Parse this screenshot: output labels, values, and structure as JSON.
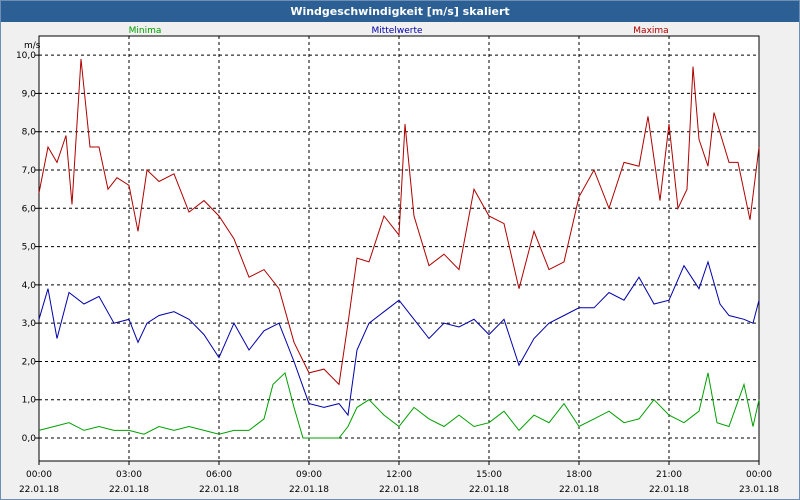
{
  "window": {
    "title": "Windgeschwindigkeit [m/s] skaliert"
  },
  "chart_data": {
    "type": "line",
    "title": "Windgeschwindigkeit [m/s] skaliert",
    "ylabel": "m/s",
    "xlabel": "",
    "ylim": [
      -0.6,
      10.5
    ],
    "xlim_hours": [
      0,
      24
    ],
    "grid": true,
    "y_ticks": [
      {
        "v": 0,
        "label": "0,0"
      },
      {
        "v": 1,
        "label": "1,0"
      },
      {
        "v": 2,
        "label": "2,0"
      },
      {
        "v": 3,
        "label": "3,0"
      },
      {
        "v": 4,
        "label": "4,0"
      },
      {
        "v": 5,
        "label": "5,0"
      },
      {
        "v": 6,
        "label": "6,0"
      },
      {
        "v": 7,
        "label": "7,0"
      },
      {
        "v": 8,
        "label": "8,0"
      },
      {
        "v": 9,
        "label": "9,0"
      },
      {
        "v": 10,
        "label": "10,0"
      }
    ],
    "x_ticks": [
      {
        "h": 0,
        "time": "00:00",
        "date": "22.01.18"
      },
      {
        "h": 3,
        "time": "03:00",
        "date": "22.01.18"
      },
      {
        "h": 6,
        "time": "06:00",
        "date": "22.01.18"
      },
      {
        "h": 9,
        "time": "09:00",
        "date": "22.01.18"
      },
      {
        "h": 12,
        "time": "12:00",
        "date": "22.01.18"
      },
      {
        "h": 15,
        "time": "15:00",
        "date": "22.01.18"
      },
      {
        "h": 18,
        "time": "18:00",
        "date": "22.01.18"
      },
      {
        "h": 21,
        "time": "21:00",
        "date": "22.01.18"
      },
      {
        "h": 24,
        "time": "00:00",
        "date": "23.01.18"
      }
    ],
    "series": [
      {
        "name": "Minima",
        "color": "#00a000",
        "points": [
          [
            0,
            0.2
          ],
          [
            0.5,
            0.3
          ],
          [
            1,
            0.4
          ],
          [
            1.5,
            0.2
          ],
          [
            2,
            0.3
          ],
          [
            2.5,
            0.2
          ],
          [
            3,
            0.2
          ],
          [
            3.5,
            0.1
          ],
          [
            4,
            0.3
          ],
          [
            4.5,
            0.2
          ],
          [
            5,
            0.3
          ],
          [
            5.5,
            0.2
          ],
          [
            6,
            0.1
          ],
          [
            6.5,
            0.2
          ],
          [
            7,
            0.2
          ],
          [
            7.5,
            0.5
          ],
          [
            7.8,
            1.4
          ],
          [
            8.2,
            1.7
          ],
          [
            8.5,
            0.8
          ],
          [
            8.8,
            0.0
          ],
          [
            9.5,
            0.0
          ],
          [
            10,
            0.0
          ],
          [
            10.3,
            0.3
          ],
          [
            10.6,
            0.8
          ],
          [
            11,
            1.0
          ],
          [
            11.5,
            0.6
          ],
          [
            12,
            0.3
          ],
          [
            12.5,
            0.8
          ],
          [
            13,
            0.5
          ],
          [
            13.5,
            0.3
          ],
          [
            14,
            0.6
          ],
          [
            14.5,
            0.3
          ],
          [
            15,
            0.4
          ],
          [
            15.5,
            0.7
          ],
          [
            16,
            0.2
          ],
          [
            16.5,
            0.6
          ],
          [
            17,
            0.4
          ],
          [
            17.5,
            0.9
          ],
          [
            18,
            0.3
          ],
          [
            18.5,
            0.5
          ],
          [
            19,
            0.7
          ],
          [
            19.5,
            0.4
          ],
          [
            20,
            0.5
          ],
          [
            20.5,
            1.0
          ],
          [
            21,
            0.6
          ],
          [
            21.5,
            0.4
          ],
          [
            22,
            0.7
          ],
          [
            22.3,
            1.7
          ],
          [
            22.6,
            0.4
          ],
          [
            23,
            0.3
          ],
          [
            23.5,
            1.4
          ],
          [
            23.8,
            0.3
          ],
          [
            24,
            1.0
          ]
        ]
      },
      {
        "name": "Mittelwerte",
        "color": "#0000aa",
        "points": [
          [
            0,
            3.1
          ],
          [
            0.3,
            3.9
          ],
          [
            0.6,
            2.6
          ],
          [
            1,
            3.8
          ],
          [
            1.5,
            3.5
          ],
          [
            2,
            3.7
          ],
          [
            2.5,
            3.0
          ],
          [
            3,
            3.1
          ],
          [
            3.3,
            2.5
          ],
          [
            3.6,
            3.0
          ],
          [
            4,
            3.2
          ],
          [
            4.5,
            3.3
          ],
          [
            5,
            3.1
          ],
          [
            5.5,
            2.7
          ],
          [
            6,
            2.1
          ],
          [
            6.5,
            3.0
          ],
          [
            7,
            2.3
          ],
          [
            7.5,
            2.8
          ],
          [
            8,
            3.0
          ],
          [
            8.5,
            2.0
          ],
          [
            9,
            0.9
          ],
          [
            9.5,
            0.8
          ],
          [
            10,
            0.9
          ],
          [
            10.3,
            0.6
          ],
          [
            10.6,
            2.3
          ],
          [
            11,
            3.0
          ],
          [
            11.5,
            3.3
          ],
          [
            12,
            3.6
          ],
          [
            12.5,
            3.1
          ],
          [
            13,
            2.6
          ],
          [
            13.5,
            3.0
          ],
          [
            14,
            2.9
          ],
          [
            14.5,
            3.1
          ],
          [
            15,
            2.7
          ],
          [
            15.5,
            3.1
          ],
          [
            16,
            1.9
          ],
          [
            16.5,
            2.6
          ],
          [
            17,
            3.0
          ],
          [
            17.5,
            3.2
          ],
          [
            18,
            3.4
          ],
          [
            18.5,
            3.4
          ],
          [
            19,
            3.8
          ],
          [
            19.5,
            3.6
          ],
          [
            20,
            4.2
          ],
          [
            20.5,
            3.5
          ],
          [
            21,
            3.6
          ],
          [
            21.5,
            4.5
          ],
          [
            22,
            3.9
          ],
          [
            22.3,
            4.6
          ],
          [
            22.7,
            3.5
          ],
          [
            23,
            3.2
          ],
          [
            23.5,
            3.1
          ],
          [
            23.8,
            3.0
          ],
          [
            24,
            3.6
          ]
        ]
      },
      {
        "name": "Maxima",
        "color": "#b00000",
        "points": [
          [
            0,
            6.4
          ],
          [
            0.3,
            7.6
          ],
          [
            0.6,
            7.2
          ],
          [
            0.9,
            7.9
          ],
          [
            1.1,
            6.1
          ],
          [
            1.4,
            9.9
          ],
          [
            1.7,
            7.6
          ],
          [
            2,
            7.6
          ],
          [
            2.3,
            6.5
          ],
          [
            2.6,
            6.8
          ],
          [
            3,
            6.6
          ],
          [
            3.3,
            5.4
          ],
          [
            3.6,
            7.0
          ],
          [
            4,
            6.7
          ],
          [
            4.5,
            6.9
          ],
          [
            5,
            5.9
          ],
          [
            5.5,
            6.2
          ],
          [
            6,
            5.8
          ],
          [
            6.5,
            5.2
          ],
          [
            7,
            4.2
          ],
          [
            7.5,
            4.4
          ],
          [
            8,
            3.9
          ],
          [
            8.5,
            2.5
          ],
          [
            9,
            1.7
          ],
          [
            9.5,
            1.8
          ],
          [
            10,
            1.4
          ],
          [
            10.3,
            3.0
          ],
          [
            10.6,
            4.7
          ],
          [
            11,
            4.6
          ],
          [
            11.5,
            5.8
          ],
          [
            12,
            5.3
          ],
          [
            12.2,
            8.2
          ],
          [
            12.5,
            5.8
          ],
          [
            13,
            4.5
          ],
          [
            13.5,
            4.8
          ],
          [
            14,
            4.4
          ],
          [
            14.5,
            6.5
          ],
          [
            15,
            5.8
          ],
          [
            15.5,
            5.6
          ],
          [
            16,
            3.9
          ],
          [
            16.5,
            5.4
          ],
          [
            17,
            4.4
          ],
          [
            17.5,
            4.6
          ],
          [
            18,
            6.3
          ],
          [
            18.5,
            7.0
          ],
          [
            19,
            6.0
          ],
          [
            19.5,
            7.2
          ],
          [
            20,
            7.1
          ],
          [
            20.3,
            8.4
          ],
          [
            20.7,
            6.2
          ],
          [
            21,
            8.2
          ],
          [
            21.3,
            6.0
          ],
          [
            21.6,
            6.5
          ],
          [
            21.8,
            9.7
          ],
          [
            22,
            7.8
          ],
          [
            22.3,
            7.1
          ],
          [
            22.5,
            8.5
          ],
          [
            23,
            7.2
          ],
          [
            23.3,
            7.2
          ],
          [
            23.7,
            5.7
          ],
          [
            24,
            7.6
          ]
        ]
      }
    ]
  }
}
